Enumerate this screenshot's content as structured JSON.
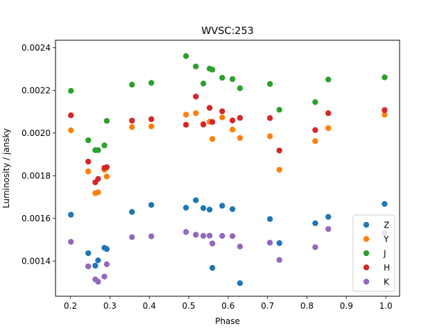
{
  "chart_data": {
    "type": "scatter",
    "title": "WVSC:253",
    "xlabel": "Phase",
    "ylabel": "Luminosity / jansky",
    "xlim": [
      0.162,
      1.035
    ],
    "ylim": [
      0.001235,
      0.002435
    ],
    "xticks": [
      0.2,
      0.3,
      0.4,
      0.5,
      0.6,
      0.7,
      0.8,
      0.9,
      1.0
    ],
    "xtick_labels": [
      "0.2",
      "0.3",
      "0.4",
      "0.5",
      "0.6",
      "0.7",
      "0.8",
      "0.9",
      "1.0"
    ],
    "yticks": [
      0.0014,
      0.0016,
      0.0018,
      0.002,
      0.0022,
      0.0024
    ],
    "ytick_labels": [
      "0.0014",
      "0.0016",
      "0.0018",
      "0.0020",
      "0.0022",
      "0.0024"
    ],
    "grid": false,
    "legend_position": "lower-right",
    "series": [
      {
        "name": "Z",
        "color": "#1f77b4",
        "points": [
          [
            0.201,
            0.001617
          ],
          [
            0.245,
            0.001437
          ],
          [
            0.263,
            0.001378
          ],
          [
            0.27,
            0.001403
          ],
          [
            0.286,
            0.001462
          ],
          [
            0.292,
            0.001456
          ],
          [
            0.356,
            0.00163
          ],
          [
            0.405,
            0.001663
          ],
          [
            0.493,
            0.00165
          ],
          [
            0.518,
            0.001685
          ],
          [
            0.537,
            0.001648
          ],
          [
            0.553,
            0.001641
          ],
          [
            0.56,
            0.001368
          ],
          [
            0.585,
            0.001659
          ],
          [
            0.611,
            0.001643
          ],
          [
            0.63,
            0.001296
          ],
          [
            0.706,
            0.001597
          ],
          [
            0.73,
            0.001484
          ],
          [
            0.821,
            0.001577
          ],
          [
            0.854,
            0.001607
          ],
          [
            0.997,
            0.001668
          ]
        ]
      },
      {
        "name": "Y",
        "color": "#ff7f0e",
        "points": [
          [
            0.201,
            0.002013
          ],
          [
            0.245,
            0.00182
          ],
          [
            0.263,
            0.001718
          ],
          [
            0.27,
            0.001722
          ],
          [
            0.286,
            0.001828
          ],
          [
            0.292,
            0.001796
          ],
          [
            0.356,
            0.002028
          ],
          [
            0.405,
            0.002031
          ],
          [
            0.493,
            0.002086
          ],
          [
            0.518,
            0.002093
          ],
          [
            0.537,
            0.002042
          ],
          [
            0.553,
            0.002053
          ],
          [
            0.56,
            0.001972
          ],
          [
            0.585,
            0.002073
          ],
          [
            0.611,
            0.002016
          ],
          [
            0.63,
            0.001977
          ],
          [
            0.706,
            0.001985
          ],
          [
            0.73,
            0.001828
          ],
          [
            0.821,
            0.001962
          ],
          [
            0.854,
            0.002023
          ],
          [
            0.997,
            0.002086
          ]
        ]
      },
      {
        "name": "J",
        "color": "#2ca02c",
        "points": [
          [
            0.201,
            0.002198
          ],
          [
            0.245,
            0.001966
          ],
          [
            0.263,
            0.00192
          ],
          [
            0.27,
            0.00192
          ],
          [
            0.286,
            0.001942
          ],
          [
            0.292,
            0.002057
          ],
          [
            0.356,
            0.002227
          ],
          [
            0.405,
            0.002235
          ],
          [
            0.493,
            0.002361
          ],
          [
            0.518,
            0.002312
          ],
          [
            0.537,
            0.002232
          ],
          [
            0.553,
            0.002302
          ],
          [
            0.56,
            0.002297
          ],
          [
            0.585,
            0.002259
          ],
          [
            0.611,
            0.002253
          ],
          [
            0.63,
            0.00221
          ],
          [
            0.706,
            0.00223
          ],
          [
            0.73,
            0.002109
          ],
          [
            0.821,
            0.002145
          ],
          [
            0.854,
            0.002251
          ],
          [
            0.997,
            0.002261
          ]
        ]
      },
      {
        "name": "H",
        "color": "#d62728",
        "points": [
          [
            0.201,
            0.002083
          ],
          [
            0.245,
            0.001866
          ],
          [
            0.263,
            0.001769
          ],
          [
            0.27,
            0.001785
          ],
          [
            0.286,
            0.001837
          ],
          [
            0.292,
            0.00184
          ],
          [
            0.356,
            0.002058
          ],
          [
            0.405,
            0.002065
          ],
          [
            0.493,
            0.002039
          ],
          [
            0.518,
            0.002171
          ],
          [
            0.537,
            0.00204
          ],
          [
            0.553,
            0.002118
          ],
          [
            0.56,
            0.002052
          ],
          [
            0.585,
            0.002102
          ],
          [
            0.611,
            0.002059
          ],
          [
            0.63,
            0.002071
          ],
          [
            0.706,
            0.00207
          ],
          [
            0.73,
            0.001918
          ],
          [
            0.821,
            0.002014
          ],
          [
            0.854,
            0.002093
          ],
          [
            0.997,
            0.002108
          ]
        ]
      },
      {
        "name": "K",
        "color": "#9467bd",
        "points": [
          [
            0.201,
            0.00149
          ],
          [
            0.245,
            0.001375
          ],
          [
            0.263,
            0.001314
          ],
          [
            0.27,
            0.001303
          ],
          [
            0.286,
            0.001327
          ],
          [
            0.292,
            0.001385
          ],
          [
            0.356,
            0.001512
          ],
          [
            0.405,
            0.001516
          ],
          [
            0.493,
            0.001536
          ],
          [
            0.518,
            0.001523
          ],
          [
            0.537,
            0.001518
          ],
          [
            0.553,
            0.001519
          ],
          [
            0.56,
            0.001482
          ],
          [
            0.585,
            0.001518
          ],
          [
            0.611,
            0.001517
          ],
          [
            0.63,
            0.001468
          ],
          [
            0.706,
            0.001486
          ],
          [
            0.73,
            0.001405
          ],
          [
            0.821,
            0.001465
          ],
          [
            0.854,
            0.00155
          ],
          [
            0.997,
            0.001532
          ]
        ]
      }
    ]
  }
}
